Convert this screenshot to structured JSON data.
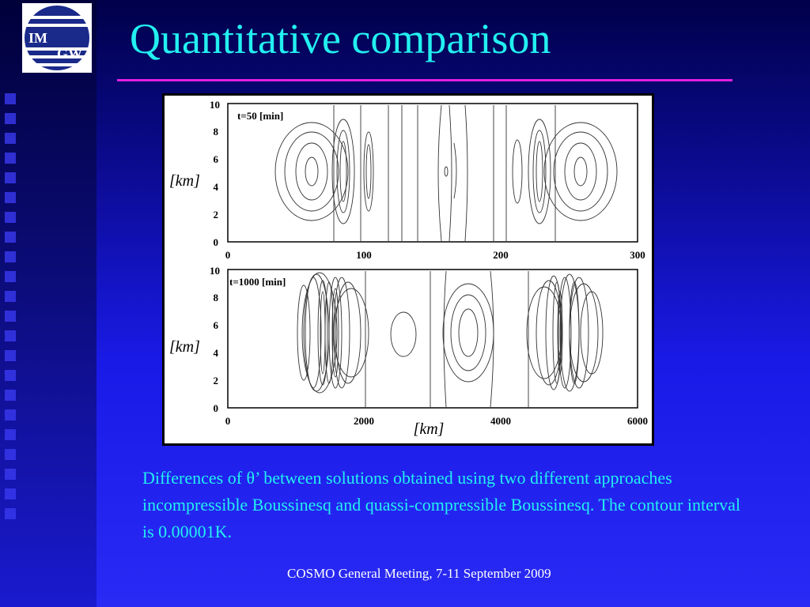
{
  "slide": {
    "title": "Quantitative comparison",
    "caption": "Differences of θ’ between solutions obtained using two different approaches incompressible Boussinesq and quassi-compressible Boussinesq. The contour interval is 0.00001K.",
    "footer": "COSMO General Meeting, 7-11 September 2009"
  },
  "logo": {
    "text": "IMGW"
  },
  "figure": {
    "top_panel": {
      "label": "t=50 [min]",
      "y_ticks": [
        "0",
        "2",
        "4",
        "6",
        "8",
        "10"
      ],
      "x_ticks": [
        "0",
        "100",
        "200",
        "300"
      ],
      "y_axis_label": "[km]"
    },
    "bottom_panel": {
      "label": "t=1000 [min]",
      "y_ticks": [
        "0",
        "2",
        "4",
        "6",
        "8",
        "10"
      ],
      "x_ticks": [
        "0",
        "2000",
        "4000",
        "6000"
      ],
      "y_axis_label": "[km]",
      "x_axis_label": "[km]"
    }
  },
  "colors": {
    "title": "#22f0f0",
    "title_line": "#e020e0",
    "caption": "#22f0f0",
    "footer": "#ffffff"
  }
}
